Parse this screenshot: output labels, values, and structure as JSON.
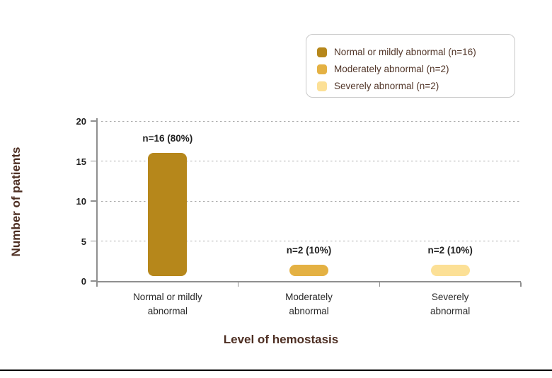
{
  "colors": {
    "series": [
      "#B6871B",
      "#E4B143",
      "#FCE096"
    ],
    "axis_line": "#8f8f8f",
    "grid_line": "#ababab",
    "tick_text": "#1f1f1f",
    "axis_title_text": "#4d2e22",
    "legend_text": "#523629",
    "legend_border": "#c9c9c9"
  },
  "legend": {
    "items": [
      {
        "label": "Normal or mildly abnormal (n=16)",
        "color": "#B6871B"
      },
      {
        "label": "Moderately abnormal (n=2)",
        "color": "#E4B143"
      },
      {
        "label": "Severely abnormal (n=2)",
        "color": "#FCE096"
      }
    ]
  },
  "chart_data": {
    "type": "bar",
    "categories": [
      "Normal or mildly abnormal",
      "Moderately abnormal",
      "Severely abnormal"
    ],
    "category_lines": [
      [
        "Normal or mildly",
        "abnormal"
      ],
      [
        "Moderately",
        "abnormal"
      ],
      [
        "Severely",
        "abnormal"
      ]
    ],
    "values": [
      16,
      2,
      2
    ],
    "bar_labels": [
      "n=16 (80%)",
      "n=2 (10%)",
      "n=2 (10%)"
    ],
    "bar_colors": [
      "#B6871B",
      "#E4B143",
      "#FCE096"
    ],
    "title": "",
    "xlabel": "Level of hemostasis",
    "ylabel": "Number of patients",
    "ylim": [
      0,
      20
    ],
    "yticks": [
      0,
      5,
      10,
      15,
      20
    ],
    "grid": "horizontal dashed at 5,10,15,20",
    "legend_position": "top-right",
    "legend_entries": [
      "Normal or mildly abnormal (n=16)",
      "Moderately abnormal (n=2)",
      "Severely abnormal (n=2)"
    ]
  }
}
